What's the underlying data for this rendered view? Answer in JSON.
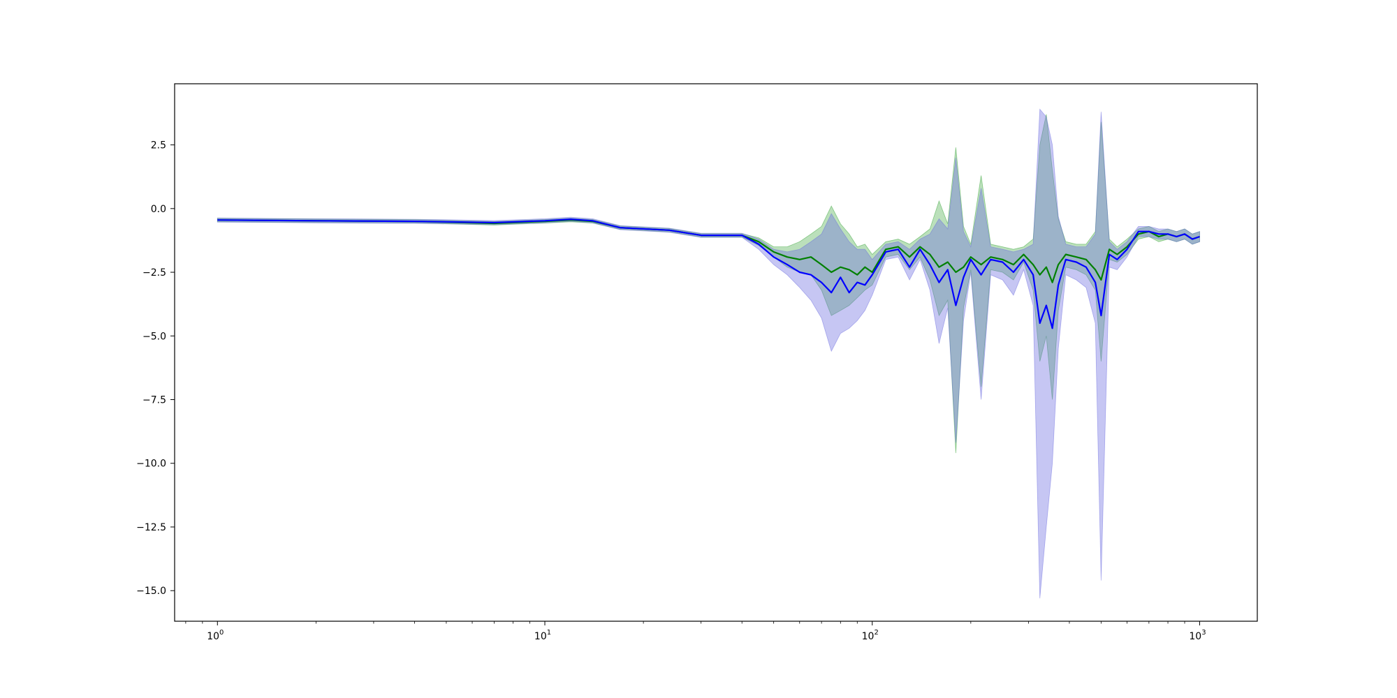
{
  "chart_data": {
    "type": "line",
    "title": "",
    "xlabel": "",
    "ylabel": "",
    "x_scale": "log",
    "xlim": [
      0.74,
      1500
    ],
    "ylim": [
      -16.2,
      4.9
    ],
    "grid": false,
    "y_ticks": [
      2.5,
      0.0,
      -2.5,
      -5.0,
      -7.5,
      -10.0,
      -12.5,
      -15.0
    ],
    "y_tick_labels": [
      "2.5",
      "0.0",
      "−2.5",
      "−5.0",
      "−7.5",
      "−10.0",
      "−12.5",
      "−15.0"
    ],
    "x_ticks": [
      {
        "value": 1,
        "base": "10",
        "exp": "0"
      },
      {
        "value": 10,
        "base": "10",
        "exp": "1"
      },
      {
        "value": 100,
        "base": "10",
        "exp": "2"
      },
      {
        "value": 1000,
        "base": "10",
        "exp": "3"
      }
    ],
    "colors": {
      "green_line": "#008000",
      "blue_line": "#0000ff",
      "green_band": "#2ca02c",
      "blue_band": "#6a6ae0",
      "overlap_band": "#4f73a8"
    },
    "series": [
      {
        "color_key": "green",
        "x": [
          1,
          2,
          4,
          7,
          10,
          12,
          14,
          17,
          24,
          30,
          35,
          40,
          45,
          50,
          55,
          60,
          65,
          70,
          75,
          80,
          85,
          90,
          95,
          100,
          110,
          120,
          130,
          140,
          150,
          160,
          170,
          180,
          190,
          200,
          215,
          230,
          250,
          270,
          290,
          310,
          325,
          340,
          355,
          370,
          390,
          420,
          450,
          480,
          500,
          530,
          560,
          600,
          650,
          700,
          750,
          800,
          850,
          900,
          950,
          1000
        ],
        "y": [
          -0.45,
          -0.48,
          -0.5,
          -0.58,
          -0.5,
          -0.45,
          -0.5,
          -0.75,
          -0.85,
          -1.05,
          -1.05,
          -1.05,
          -1.3,
          -1.7,
          -1.9,
          -2.0,
          -1.9,
          -2.2,
          -2.5,
          -2.3,
          -2.4,
          -2.6,
          -2.3,
          -2.5,
          -1.6,
          -1.5,
          -1.9,
          -1.5,
          -1.8,
          -2.3,
          -2.1,
          -2.5,
          -2.3,
          -1.9,
          -2.2,
          -1.9,
          -2.0,
          -2.2,
          -1.8,
          -2.2,
          -2.6,
          -2.3,
          -2.9,
          -2.2,
          -1.8,
          -1.9,
          -2.0,
          -2.4,
          -2.8,
          -1.6,
          -1.8,
          -1.5,
          -1.0,
          -0.9,
          -1.1,
          -1.0,
          -1.1,
          -1.0,
          -1.2,
          -1.1
        ],
        "lower": [
          -0.52,
          -0.55,
          -0.57,
          -0.65,
          -0.57,
          -0.52,
          -0.57,
          -0.82,
          -0.92,
          -1.12,
          -1.12,
          -1.12,
          -1.45,
          -1.9,
          -2.3,
          -2.5,
          -2.6,
          -3.2,
          -4.2,
          -4.0,
          -3.8,
          -3.5,
          -3.2,
          -3.0,
          -1.9,
          -1.8,
          -2.4,
          -1.9,
          -2.8,
          -4.2,
          -3.6,
          -9.6,
          -3.9,
          -2.4,
          -7.0,
          -2.4,
          -2.5,
          -2.8,
          -2.1,
          -3.2,
          -6.0,
          -5.0,
          -7.5,
          -4.0,
          -2.3,
          -2.4,
          -2.6,
          -3.2,
          -6.0,
          -2.0,
          -2.1,
          -1.8,
          -1.2,
          -1.1,
          -1.3,
          -1.2,
          -1.3,
          -1.2,
          -1.4,
          -1.3
        ],
        "upper": [
          -0.38,
          -0.41,
          -0.43,
          -0.51,
          -0.43,
          -0.38,
          -0.43,
          -0.68,
          -0.78,
          -0.98,
          -0.98,
          -0.98,
          -1.15,
          -1.5,
          -1.5,
          -1.3,
          -1.0,
          -0.7,
          0.1,
          -0.6,
          -1.0,
          -1.5,
          -1.4,
          -1.8,
          -1.3,
          -1.2,
          -1.4,
          -1.1,
          -0.8,
          0.3,
          -0.6,
          2.4,
          -0.7,
          -1.4,
          1.3,
          -1.4,
          -1.5,
          -1.6,
          -1.5,
          -1.2,
          2.5,
          3.7,
          1.5,
          -0.4,
          -1.3,
          -1.4,
          -1.4,
          -0.9,
          3.4,
          -1.2,
          -1.5,
          -1.2,
          -0.8,
          -0.7,
          -0.9,
          -0.8,
          -0.9,
          -0.8,
          -1.0,
          -0.9
        ]
      },
      {
        "color_key": "blue",
        "x": [
          1,
          2,
          4,
          7,
          10,
          12,
          14,
          17,
          24,
          30,
          35,
          40,
          45,
          50,
          55,
          60,
          65,
          70,
          75,
          80,
          85,
          90,
          95,
          100,
          110,
          120,
          130,
          140,
          150,
          160,
          170,
          180,
          190,
          200,
          215,
          230,
          250,
          270,
          290,
          310,
          325,
          340,
          355,
          370,
          390,
          420,
          450,
          480,
          500,
          530,
          560,
          600,
          650,
          700,
          750,
          800,
          850,
          900,
          950,
          1000
        ],
        "y": [
          -0.45,
          -0.48,
          -0.5,
          -0.55,
          -0.48,
          -0.42,
          -0.48,
          -0.75,
          -0.85,
          -1.05,
          -1.05,
          -1.05,
          -1.4,
          -1.9,
          -2.2,
          -2.5,
          -2.6,
          -2.9,
          -3.3,
          -2.7,
          -3.3,
          -2.9,
          -3.0,
          -2.6,
          -1.7,
          -1.6,
          -2.3,
          -1.6,
          -2.2,
          -2.9,
          -2.4,
          -3.8,
          -2.7,
          -2.0,
          -2.6,
          -2.0,
          -2.1,
          -2.5,
          -2.0,
          -2.6,
          -4.5,
          -3.8,
          -4.7,
          -3.0,
          -2.0,
          -2.1,
          -2.3,
          -2.9,
          -4.2,
          -1.8,
          -2.0,
          -1.6,
          -0.9,
          -0.9,
          -1.0,
          -1.0,
          -1.1,
          -1.0,
          -1.2,
          -1.1
        ],
        "lower": [
          -0.53,
          -0.56,
          -0.58,
          -0.63,
          -0.56,
          -0.5,
          -0.56,
          -0.83,
          -0.93,
          -1.13,
          -1.13,
          -1.13,
          -1.6,
          -2.2,
          -2.6,
          -3.1,
          -3.6,
          -4.3,
          -5.6,
          -4.9,
          -4.7,
          -4.4,
          -4.0,
          -3.4,
          -2.0,
          -1.9,
          -2.8,
          -2.0,
          -3.2,
          -5.3,
          -3.9,
          -9.2,
          -4.4,
          -2.5,
          -7.5,
          -2.6,
          -2.8,
          -3.4,
          -2.4,
          -3.8,
          -15.3,
          -12.5,
          -10.0,
          -5.5,
          -2.6,
          -2.8,
          -3.1,
          -4.5,
          -14.6,
          -2.3,
          -2.4,
          -1.9,
          -1.1,
          -1.1,
          -1.2,
          -1.2,
          -1.3,
          -1.2,
          -1.4,
          -1.3
        ],
        "upper": [
          -0.37,
          -0.4,
          -0.42,
          -0.47,
          -0.4,
          -0.34,
          -0.4,
          -0.67,
          -0.77,
          -0.97,
          -0.97,
          -0.97,
          -1.2,
          -1.6,
          -1.7,
          -1.6,
          -1.3,
          -1.0,
          -0.2,
          -0.8,
          -1.3,
          -1.6,
          -1.6,
          -2.0,
          -1.4,
          -1.3,
          -1.6,
          -1.2,
          -1.0,
          -0.4,
          -0.8,
          2.0,
          -0.9,
          -1.5,
          0.8,
          -1.5,
          -1.6,
          -1.7,
          -1.6,
          -1.4,
          3.9,
          3.6,
          2.5,
          -0.3,
          -1.4,
          -1.5,
          -1.5,
          -1.0,
          3.8,
          -1.3,
          -1.6,
          -1.3,
          -0.7,
          -0.7,
          -0.8,
          -0.8,
          -0.9,
          -0.8,
          -1.0,
          -0.9
        ]
      }
    ]
  }
}
